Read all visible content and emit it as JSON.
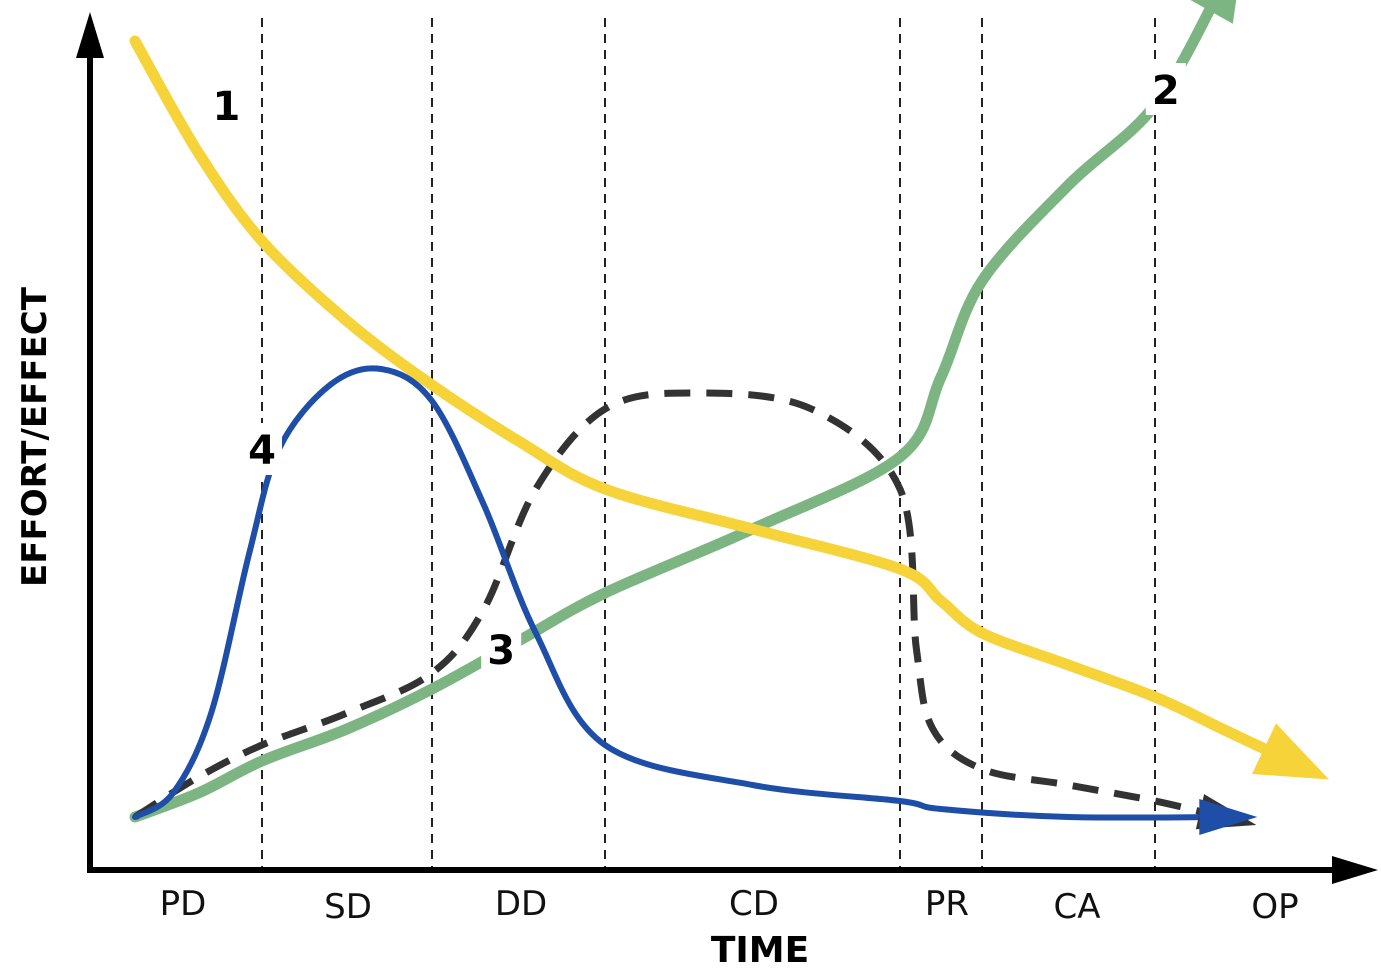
{
  "chart_data": {
    "type": "line",
    "xlabel": "TIME",
    "ylabel": "EFFORT/EFFECT",
    "phases": [
      "PD",
      "SD",
      "DD",
      "CD",
      "PR",
      "CA",
      "OP"
    ],
    "grid": false,
    "series": [
      {
        "label": "1",
        "color": "#f7d33a",
        "style": "solid",
        "points": [
          [
            0.0,
            0.98
          ],
          [
            0.5,
            0.84
          ],
          [
            1.0,
            0.73
          ],
          [
            1.5,
            0.63
          ],
          [
            2.0,
            0.55
          ],
          [
            2.5,
            0.48
          ],
          [
            3.0,
            0.42
          ],
          [
            3.5,
            0.37
          ],
          [
            4.0,
            0.32
          ],
          [
            4.5,
            0.28
          ],
          [
            5.0,
            0.24
          ],
          [
            5.5,
            0.2
          ],
          [
            6.0,
            0.16
          ],
          [
            6.5,
            0.12
          ],
          [
            7.0,
            0.08
          ]
        ]
      },
      {
        "label": "2",
        "color": "#7db582",
        "style": "solid",
        "points": [
          [
            0.0,
            0.01
          ],
          [
            0.5,
            0.04
          ],
          [
            1.0,
            0.08
          ],
          [
            1.5,
            0.12
          ],
          [
            2.0,
            0.17
          ],
          [
            2.5,
            0.23
          ],
          [
            3.0,
            0.29
          ],
          [
            3.5,
            0.37
          ],
          [
            4.0,
            0.46
          ],
          [
            4.5,
            0.56
          ],
          [
            5.0,
            0.68
          ],
          [
            5.5,
            0.8
          ],
          [
            6.0,
            0.9
          ],
          [
            6.5,
            1.05
          ]
        ]
      },
      {
        "label": "3",
        "color": "#333333",
        "style": "dashed",
        "points": [
          [
            0.0,
            0.01
          ],
          [
            0.5,
            0.06
          ],
          [
            1.0,
            0.1
          ],
          [
            1.5,
            0.14
          ],
          [
            2.0,
            0.19
          ],
          [
            2.3,
            0.27
          ],
          [
            2.6,
            0.42
          ],
          [
            3.0,
            0.52
          ],
          [
            3.3,
            0.54
          ],
          [
            3.7,
            0.52
          ],
          [
            4.0,
            0.42
          ],
          [
            4.2,
            0.22
          ],
          [
            4.4,
            0.12
          ],
          [
            5.0,
            0.07
          ],
          [
            5.5,
            0.05
          ],
          [
            6.0,
            0.03
          ],
          [
            6.5,
            0.01
          ]
        ]
      },
      {
        "label": "4",
        "color": "#1e4ea8",
        "style": "solid",
        "points": [
          [
            0.0,
            0.01
          ],
          [
            0.3,
            0.04
          ],
          [
            0.6,
            0.14
          ],
          [
            0.9,
            0.34
          ],
          [
            1.1,
            0.47
          ],
          [
            1.4,
            0.55
          ],
          [
            1.7,
            0.57
          ],
          [
            2.0,
            0.53
          ],
          [
            2.3,
            0.4
          ],
          [
            2.6,
            0.24
          ],
          [
            3.0,
            0.1
          ],
          [
            3.5,
            0.05
          ],
          [
            4.0,
            0.03
          ],
          [
            4.5,
            0.02
          ],
          [
            5.5,
            0.01
          ],
          [
            6.5,
            0.01
          ]
        ]
      }
    ]
  }
}
